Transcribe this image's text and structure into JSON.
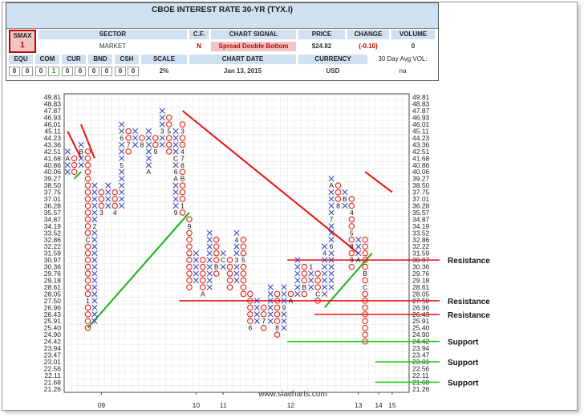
{
  "header": {
    "title": "CBOE INTEREST RATE 30-YR (TYX.I)",
    "smax_label": "SMAX",
    "smax_value": "1",
    "sector_label": "SECTOR",
    "sector_value": "MARKET",
    "cf_label": "C.F.",
    "cf_value": "N",
    "signal_label": "CHART SIGNAL",
    "signal_value": "Spread Double Bottom",
    "price_label": "PRICE",
    "price_value": "$24.82",
    "change_label": "CHANGE",
    "change_value": "(-0.10)",
    "volume_label": "VOLUME",
    "volume_value": "0",
    "equ_label": "EQU",
    "com_label": "COM",
    "cur_label": "CUR",
    "bnd_label": "BND",
    "csh_label": "CSH",
    "scale_label": "SCALE",
    "equ_values": [
      "0",
      "0"
    ],
    "com_values": [
      "0",
      "1"
    ],
    "cur_values": [
      "0",
      "0"
    ],
    "bnd_values": [
      "0",
      "0"
    ],
    "csh_values": [
      "0",
      "0"
    ],
    "scale_value": "2%",
    "date_label": "CHART DATE",
    "date_value": "Jan 13, 2015",
    "currency_label": "CURRENCY",
    "currency_value": "USD",
    "avgvol_label": "30 Day Avg VOL:",
    "avgvol_value": "na"
  },
  "watermark": "www.siacharts.com",
  "colors": {
    "x": "#3b4cc0",
    "o": "#e0261b",
    "trend_red": "#e8120f",
    "trend_green": "#17b417",
    "level_red": "#e8120f",
    "level_green": "#12cc12"
  },
  "chart_data": {
    "type": "point-and-figure",
    "title": "CBOE INTEREST RATE 30-YR (TYX.I)",
    "box_scale": "2%",
    "y_ticks": [
      "49.81",
      "48.83",
      "47.87",
      "46.93",
      "46.01",
      "45.11",
      "44.23",
      "43.36",
      "42.51",
      "41.68",
      "40.86",
      "40.06",
      "39.27",
      "38.50",
      "37.75",
      "37.01",
      "36.28",
      "35.57",
      "34.87",
      "34.19",
      "33.52",
      "32.86",
      "32.22",
      "31.59",
      "30.97",
      "30.36",
      "29.76",
      "29.18",
      "28.61",
      "28.05",
      "27.50",
      "26.96",
      "26.43",
      "25.91",
      "25.40",
      "24.90",
      "24.42",
      "23.94",
      "23.47",
      "23.01",
      "22.56",
      "22.11",
      "21.68",
      "21.26"
    ],
    "x_labels": [
      {
        "label": "09",
        "column": 5
      },
      {
        "label": "10",
        "column": 19
      },
      {
        "label": "11",
        "column": 23
      },
      {
        "label": "12",
        "column": 33
      },
      {
        "label": "13",
        "column": 43
      },
      {
        "label": "14",
        "column": 46
      },
      {
        "label": "15",
        "column": 48
      }
    ],
    "columns": [
      {
        "type": "X",
        "bottom": "40.06",
        "top": "42.51",
        "markers": [
          {
            "at": "41.68",
            "m": "A"
          }
        ]
      },
      {
        "type": "O",
        "top": "41.68",
        "bottom": "40.06"
      },
      {
        "type": "X",
        "bottom": "40.86",
        "top": "43.36",
        "markers": [
          {
            "at": "42.51",
            "m": "B"
          }
        ]
      },
      {
        "type": "O",
        "top": "42.51",
        "bottom": "25.40",
        "markers": [
          {
            "at": "32.86",
            "m": "C"
          },
          {
            "at": "27.50",
            "m": "1"
          }
        ]
      },
      {
        "type": "X",
        "bottom": "25.91",
        "top": "38.50",
        "markers": [
          {
            "at": "34.19",
            "m": "2"
          }
        ]
      },
      {
        "type": "O",
        "top": "37.75",
        "bottom": "35.57",
        "markers": [
          {
            "at": "35.57",
            "m": "3"
          }
        ]
      },
      {
        "type": "X",
        "bottom": "36.28",
        "top": "38.50"
      },
      {
        "type": "O",
        "top": "37.75",
        "bottom": "35.57",
        "markers": [
          {
            "at": "35.57",
            "m": "4"
          }
        ]
      },
      {
        "type": "X",
        "bottom": "36.28",
        "top": "46.01",
        "markers": [
          {
            "at": "40.86",
            "m": "5"
          },
          {
            "at": "44.23",
            "m": "6"
          }
        ]
      },
      {
        "type": "O",
        "top": "45.11",
        "bottom": "42.51",
        "markers": [
          {
            "at": "43.36",
            "m": "7"
          }
        ]
      },
      {
        "type": "X",
        "bottom": "43.36",
        "top": "45.11"
      },
      {
        "type": "O",
        "top": "44.23",
        "bottom": "43.36",
        "markers": [
          {
            "at": "43.36",
            "m": "8"
          }
        ]
      },
      {
        "type": "X",
        "bottom": "40.06",
        "top": "45.11",
        "markers": [
          {
            "at": "40.06",
            "m": "A"
          }
        ]
      },
      {
        "type": "O",
        "top": "44.23",
        "bottom": "42.51",
        "markers": [
          {
            "at": "42.51",
            "m": "9"
          }
        ]
      },
      {
        "type": "X",
        "bottom": "43.36",
        "top": "47.87",
        "markers": [
          {
            "at": "45.11",
            "m": "3"
          }
        ]
      },
      {
        "type": "O",
        "top": "46.93",
        "bottom": "42.51",
        "markers": [
          {
            "at": "45.11",
            "m": "5"
          }
        ]
      },
      {
        "type": "X",
        "bottom": "35.57",
        "top": "45.11",
        "markers": [
          {
            "at": "35.57",
            "m": "9"
          },
          {
            "at": "39.27",
            "m": "A"
          },
          {
            "at": "40.06",
            "m": "6"
          },
          {
            "at": "41.68",
            "m": "C"
          }
        ]
      },
      {
        "type": "O",
        "top": "46.01",
        "bottom": "35.57",
        "markers": [
          {
            "at": "45.11",
            "m": "3"
          },
          {
            "at": "42.51",
            "m": "4"
          },
          {
            "at": "41.68",
            "m": "7"
          },
          {
            "at": "40.86",
            "m": "8"
          },
          {
            "at": "39.27",
            "m": "B"
          },
          {
            "at": "36.28",
            "m": "1"
          }
        ]
      },
      {
        "type": "O",
        "top": "34.87",
        "bottom": "28.61",
        "markers": [
          {
            "at": "34.19",
            "m": "9"
          }
        ]
      },
      {
        "type": "X",
        "bottom": "29.18",
        "top": "31.59"
      },
      {
        "type": "O",
        "top": "30.97",
        "bottom": "28.05",
        "markers": [
          {
            "at": "28.05",
            "m": "A"
          }
        ]
      },
      {
        "type": "X",
        "bottom": "28.61",
        "top": "33.52"
      },
      {
        "type": "O",
        "top": "32.86",
        "bottom": "29.76",
        "markers": [
          {
            "at": "30.36",
            "m": "B"
          }
        ]
      },
      {
        "type": "X",
        "bottom": "30.36",
        "top": "31.59",
        "markers": [
          {
            "at": "30.97",
            "m": "C"
          }
        ]
      },
      {
        "type": "O",
        "top": "30.97",
        "bottom": "28.61"
      },
      {
        "type": "X",
        "bottom": "29.18",
        "top": "33.52",
        "markers": [
          {
            "at": "30.97",
            "m": "3"
          },
          {
            "at": "32.86",
            "m": "4"
          }
        ]
      },
      {
        "type": "O",
        "top": "32.86",
        "bottom": "28.05",
        "markers": [
          {
            "at": "30.97",
            "m": "5"
          }
        ]
      },
      {
        "type": "O",
        "top": "28.05",
        "bottom": "25.40",
        "markers": [
          {
            "at": "25.40",
            "m": "6"
          }
        ]
      },
      {
        "type": "X",
        "bottom": "25.91",
        "top": "27.50"
      },
      {
        "type": "O",
        "top": "26.96",
        "bottom": "25.40",
        "markers": [
          {
            "at": "25.91",
            "m": "7"
          }
        ]
      },
      {
        "type": "X",
        "bottom": "25.91",
        "top": "28.61"
      },
      {
        "type": "O",
        "top": "28.05",
        "bottom": "24.90",
        "markers": [
          {
            "at": "25.40",
            "m": "8"
          }
        ]
      },
      {
        "type": "X",
        "bottom": "25.40",
        "top": "28.61",
        "markers": [
          {
            "at": "26.96",
            "m": "9"
          }
        ]
      },
      {
        "type": "O",
        "top": "28.05",
        "bottom": "27.50",
        "markers": [
          {
            "at": "27.50",
            "m": "A"
          }
        ]
      },
      {
        "type": "X",
        "bottom": "28.05",
        "top": "30.97"
      },
      {
        "type": "O",
        "top": "30.36",
        "bottom": "28.05",
        "markers": [
          {
            "at": "28.61",
            "m": "B"
          }
        ]
      },
      {
        "type": "X",
        "bottom": "28.61",
        "top": "30.36",
        "markers": [
          {
            "at": "30.36",
            "m": "1"
          }
        ]
      },
      {
        "type": "O",
        "top": "29.76",
        "bottom": "27.50",
        "markers": [
          {
            "at": "28.05",
            "m": "C"
          }
        ]
      },
      {
        "type": "X",
        "bottom": "28.05",
        "top": "32.22",
        "markers": [
          {
            "at": "31.59",
            "m": "4"
          }
        ]
      },
      {
        "type": "X",
        "bottom": "28.61",
        "top": "39.27",
        "markers": [
          {
            "at": "32.22",
            "m": "6"
          },
          {
            "at": "34.87",
            "m": "7"
          },
          {
            "at": "38.50",
            "m": "A"
          }
        ]
      },
      {
        "type": "O",
        "top": "38.50",
        "bottom": "36.28",
        "markers": [
          {
            "at": "36.28",
            "m": "8"
          }
        ]
      },
      {
        "type": "X",
        "bottom": "36.28",
        "top": "37.75",
        "markers": [
          {
            "at": "37.01",
            "m": "B"
          }
        ]
      },
      {
        "type": "O",
        "top": "37.01",
        "bottom": "30.36",
        "markers": [
          {
            "at": "35.57",
            "m": "4"
          },
          {
            "at": "33.52",
            "m": "5"
          },
          {
            "at": "32.22",
            "m": "8"
          },
          {
            "at": "30.97",
            "m": "9"
          }
        ]
      },
      {
        "type": "X",
        "bottom": "30.97",
        "top": "32.86",
        "markers": [
          {
            "at": "30.97",
            "m": "A"
          }
        ]
      },
      {
        "type": "O",
        "top": "32.86",
        "bottom": "24.42",
        "markers": [
          {
            "at": "29.76",
            "m": "B"
          },
          {
            "at": "28.61",
            "m": "C"
          }
        ]
      }
    ],
    "trendlines": [
      {
        "color": "red",
        "from": {
          "column": 0,
          "value": "45.11"
        },
        "to": {
          "column": 2,
          "value": "41.68"
        }
      },
      {
        "color": "red",
        "from": {
          "column": 2,
          "value": "46.01"
        },
        "to": {
          "column": 4,
          "value": "41.68"
        }
      },
      {
        "color": "red",
        "from": {
          "column": 17,
          "value": "47.87"
        },
        "to": {
          "column": 43,
          "value": "31.59"
        }
      },
      {
        "color": "red",
        "from": {
          "column": 44,
          "value": "40.06"
        },
        "to": {
          "column": 48,
          "value": "37.75"
        }
      },
      {
        "color": "green",
        "from": {
          "column": 1,
          "value": "39.27"
        },
        "to": {
          "column": 2,
          "value": "40.06"
        }
      },
      {
        "color": "green",
        "from": {
          "column": 3,
          "value": "25.40"
        },
        "to": {
          "column": 18,
          "value": "35.57"
        }
      },
      {
        "color": "green",
        "from": {
          "column": 38,
          "value": "26.96"
        },
        "to": {
          "column": 45,
          "value": "31.59"
        }
      }
    ],
    "levels": [
      {
        "label": "Resistance",
        "value": "30.97",
        "color": "red",
        "from_column": 33
      },
      {
        "label": "Resistance",
        "value": "27.50",
        "color": "red",
        "from_column": 17
      },
      {
        "label": "Resistance",
        "value": "26.43",
        "color": "red",
        "from_column": 37
      },
      {
        "label": "Support",
        "value": "24.42",
        "color": "green",
        "from_column": 33
      },
      {
        "label": "Support",
        "value": "23.01",
        "color": "green",
        "from_column": 46
      },
      {
        "label": "Support",
        "value": "21.68",
        "color": "green",
        "from_column": 46
      }
    ]
  }
}
